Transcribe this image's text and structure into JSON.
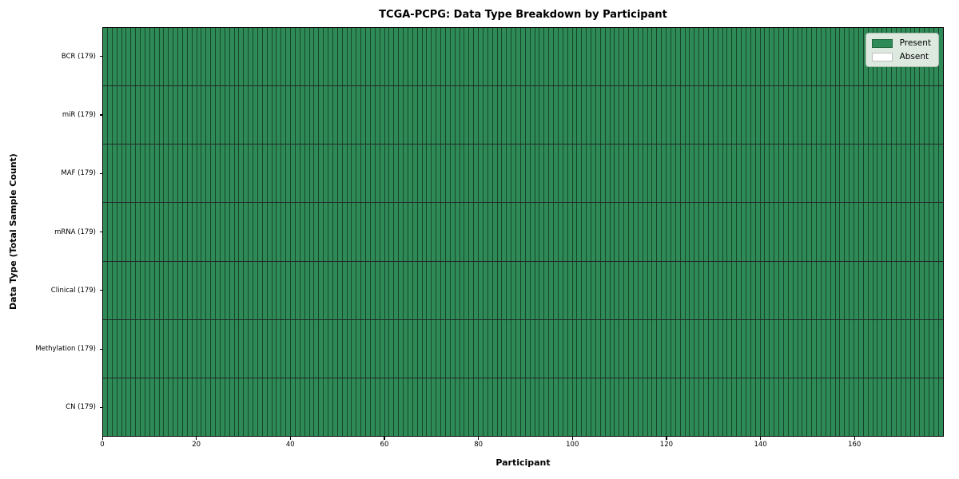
{
  "chart_data": {
    "type": "heatmap",
    "title": "TCGA-PCPG: Data Type Breakdown by Participant",
    "xlabel": "Participant",
    "ylabel": "Data Type (Total Sample Count)",
    "n_participants": 179,
    "xlim": [
      0,
      179
    ],
    "x_ticks": [
      0,
      20,
      40,
      60,
      80,
      100,
      120,
      140,
      160
    ],
    "grid": "cell-borders",
    "rows": [
      {
        "data_type": "BCR",
        "label": "BCR (179)",
        "total_samples": 179,
        "present_participants": 179,
        "absent_participants": 0
      },
      {
        "data_type": "miR",
        "label": "miR (179)",
        "total_samples": 179,
        "present_participants": 179,
        "absent_participants": 0
      },
      {
        "data_type": "MAF",
        "label": "MAF (179)",
        "total_samples": 179,
        "present_participants": 179,
        "absent_participants": 0
      },
      {
        "data_type": "mRNA",
        "label": "mRNA (179)",
        "total_samples": 179,
        "present_participants": 179,
        "absent_participants": 0
      },
      {
        "data_type": "Clinical",
        "label": "Clinical (179)",
        "total_samples": 179,
        "present_participants": 179,
        "absent_participants": 0
      },
      {
        "data_type": "Methylation",
        "label": "Methylation (179)",
        "total_samples": 179,
        "present_participants": 179,
        "absent_participants": 0
      },
      {
        "data_type": "CN",
        "label": "CN (179)",
        "total_samples": 179,
        "present_participants": 179,
        "absent_participants": 0
      }
    ],
    "legend": {
      "position": "upper right",
      "entries": [
        {
          "label": "Present",
          "color": "#2e8b57"
        },
        {
          "label": "Absent",
          "color": "#ffffff"
        }
      ]
    },
    "colors": {
      "present": "#2e8b57",
      "absent": "#ffffff",
      "cell_edge": "#1a1a1a",
      "row_separator": "#111111",
      "spine": "#000000",
      "legend_bg": "#dde8df",
      "legend_border": "#b2bfb5"
    }
  }
}
